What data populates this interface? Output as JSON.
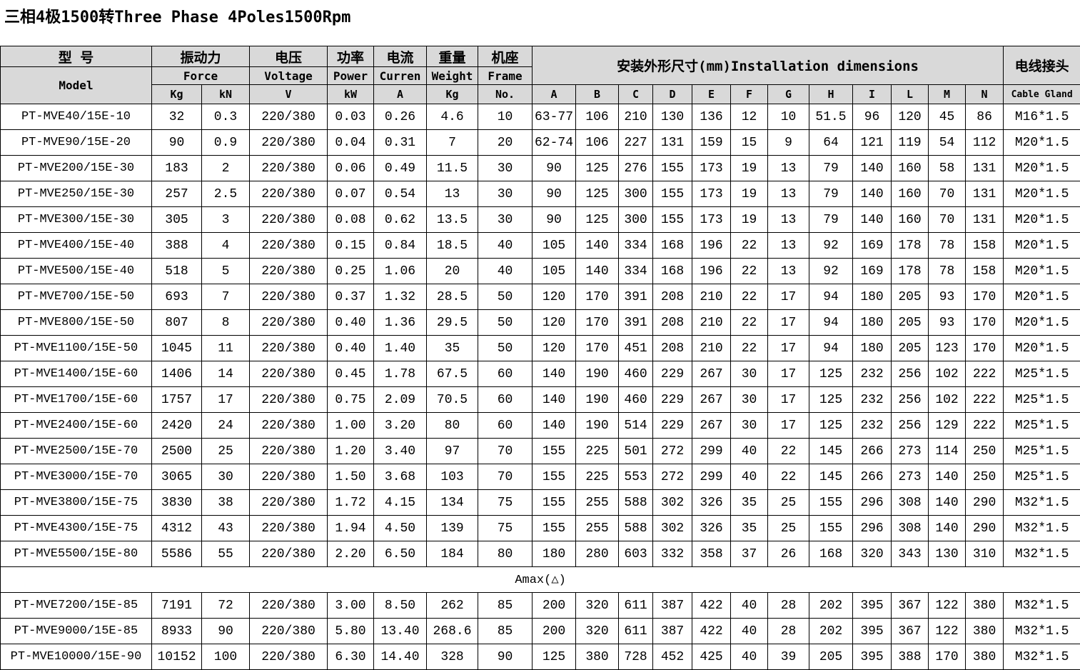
{
  "title": "三相4极1500转Three Phase 4Poles1500Rpm",
  "header": {
    "model_cn": "型 号",
    "model_en": "Model",
    "force_cn": "振动力",
    "force_en": "Force",
    "force_kg": "Kg",
    "force_kn": "kN",
    "voltage_cn": "电压",
    "voltage_en": "Voltage",
    "voltage_unit": "V",
    "power_cn": "功率",
    "power_en": "Power",
    "power_unit": "kW",
    "current_cn": "电流",
    "current_en": "Curren",
    "current_unit": "A",
    "weight_cn": "重量",
    "weight_en": "Weight",
    "weight_unit": "Kg",
    "frame_cn": "机座",
    "frame_en": "Frame",
    "frame_unit": "No.",
    "dims": "安装外形尺寸(mm)Installation dimensions",
    "dim_cols": [
      "A",
      "B",
      "C",
      "D",
      "E",
      "F",
      "G",
      "H",
      "I",
      "L",
      "M",
      "N"
    ],
    "gland_cn": "电线接头",
    "gland_en": "Cable Gland"
  },
  "rows": [
    [
      "PT-MVE40/15E-10",
      "32",
      "0.3",
      "220/380",
      "0.03",
      "0.26",
      "4.6",
      "10",
      "63-77",
      "106",
      "210",
      "130",
      "136",
      "12",
      "10",
      "51.5",
      "96",
      "120",
      "45",
      "86",
      "M16*1.5"
    ],
    [
      "PT-MVE90/15E-20",
      "90",
      "0.9",
      "220/380",
      "0.04",
      "0.31",
      "7",
      "20",
      "62-74",
      "106",
      "227",
      "131",
      "159",
      "15",
      "9",
      "64",
      "121",
      "119",
      "54",
      "112",
      "M20*1.5"
    ],
    [
      "PT-MVE200/15E-30",
      "183",
      "2",
      "220/380",
      "0.06",
      "0.49",
      "11.5",
      "30",
      "90",
      "125",
      "276",
      "155",
      "173",
      "19",
      "13",
      "79",
      "140",
      "160",
      "58",
      "131",
      "M20*1.5"
    ],
    [
      "PT-MVE250/15E-30",
      "257",
      "2.5",
      "220/380",
      "0.07",
      "0.54",
      "13",
      "30",
      "90",
      "125",
      "300",
      "155",
      "173",
      "19",
      "13",
      "79",
      "140",
      "160",
      "70",
      "131",
      "M20*1.5"
    ],
    [
      "PT-MVE300/15E-30",
      "305",
      "3",
      "220/380",
      "0.08",
      "0.62",
      "13.5",
      "30",
      "90",
      "125",
      "300",
      "155",
      "173",
      "19",
      "13",
      "79",
      "140",
      "160",
      "70",
      "131",
      "M20*1.5"
    ],
    [
      "PT-MVE400/15E-40",
      "388",
      "4",
      "220/380",
      "0.15",
      "0.84",
      "18.5",
      "40",
      "105",
      "140",
      "334",
      "168",
      "196",
      "22",
      "13",
      "92",
      "169",
      "178",
      "78",
      "158",
      "M20*1.5"
    ],
    [
      "PT-MVE500/15E-40",
      "518",
      "5",
      "220/380",
      "0.25",
      "1.06",
      "20",
      "40",
      "105",
      "140",
      "334",
      "168",
      "196",
      "22",
      "13",
      "92",
      "169",
      "178",
      "78",
      "158",
      "M20*1.5"
    ],
    [
      "PT-MVE700/15E-50",
      "693",
      "7",
      "220/380",
      "0.37",
      "1.32",
      "28.5",
      "50",
      "120",
      "170",
      "391",
      "208",
      "210",
      "22",
      "17",
      "94",
      "180",
      "205",
      "93",
      "170",
      "M20*1.5"
    ],
    [
      "PT-MVE800/15E-50",
      "807",
      "8",
      "220/380",
      "0.40",
      "1.36",
      "29.5",
      "50",
      "120",
      "170",
      "391",
      "208",
      "210",
      "22",
      "17",
      "94",
      "180",
      "205",
      "93",
      "170",
      "M20*1.5"
    ],
    [
      "PT-MVE1100/15E-50",
      "1045",
      "11",
      "220/380",
      "0.40",
      "1.40",
      "35",
      "50",
      "120",
      "170",
      "451",
      "208",
      "210",
      "22",
      "17",
      "94",
      "180",
      "205",
      "123",
      "170",
      "M20*1.5"
    ],
    [
      "PT-MVE1400/15E-60",
      "1406",
      "14",
      "220/380",
      "0.45",
      "1.78",
      "67.5",
      "60",
      "140",
      "190",
      "460",
      "229",
      "267",
      "30",
      "17",
      "125",
      "232",
      "256",
      "102",
      "222",
      "M25*1.5"
    ],
    [
      "PT-MVE1700/15E-60",
      "1757",
      "17",
      "220/380",
      "0.75",
      "2.09",
      "70.5",
      "60",
      "140",
      "190",
      "460",
      "229",
      "267",
      "30",
      "17",
      "125",
      "232",
      "256",
      "102",
      "222",
      "M25*1.5"
    ],
    [
      "PT-MVE2400/15E-60",
      "2420",
      "24",
      "220/380",
      "1.00",
      "3.20",
      "80",
      "60",
      "140",
      "190",
      "514",
      "229",
      "267",
      "30",
      "17",
      "125",
      "232",
      "256",
      "129",
      "222",
      "M25*1.5"
    ],
    [
      "PT-MVE2500/15E-70",
      "2500",
      "25",
      "220/380",
      "1.20",
      "3.40",
      "97",
      "70",
      "155",
      "225",
      "501",
      "272",
      "299",
      "40",
      "22",
      "145",
      "266",
      "273",
      "114",
      "250",
      "M25*1.5"
    ],
    [
      "PT-MVE3000/15E-70",
      "3065",
      "30",
      "220/380",
      "1.50",
      "3.68",
      "103",
      "70",
      "155",
      "225",
      "553",
      "272",
      "299",
      "40",
      "22",
      "145",
      "266",
      "273",
      "140",
      "250",
      "M25*1.5"
    ],
    [
      "PT-MVE3800/15E-75",
      "3830",
      "38",
      "220/380",
      "1.72",
      "4.15",
      "134",
      "75",
      "155",
      "255",
      "588",
      "302",
      "326",
      "35",
      "25",
      "155",
      "296",
      "308",
      "140",
      "290",
      "M32*1.5"
    ],
    [
      "PT-MVE4300/15E-75",
      "4312",
      "43",
      "220/380",
      "1.94",
      "4.50",
      "139",
      "75",
      "155",
      "255",
      "588",
      "302",
      "326",
      "35",
      "25",
      "155",
      "296",
      "308",
      "140",
      "290",
      "M32*1.5"
    ],
    [
      "PT-MVE5500/15E-80",
      "5586",
      "55",
      "220/380",
      "2.20",
      "6.50",
      "184",
      "80",
      "180",
      "280",
      "603",
      "332",
      "358",
      "37",
      "26",
      "168",
      "320",
      "343",
      "130",
      "310",
      "M32*1.5"
    ]
  ],
  "amax_label": "Amax(△)",
  "rows2": [
    [
      "PT-MVE7200/15E-85",
      "7191",
      "72",
      "220/380",
      "3.00",
      "8.50",
      "262",
      "85",
      "200",
      "320",
      "611",
      "387",
      "422",
      "40",
      "28",
      "202",
      "395",
      "367",
      "122",
      "380",
      "M32*1.5"
    ],
    [
      "PT-MVE9000/15E-85",
      "8933",
      "90",
      "220/380",
      "5.80",
      "13.40",
      "268.6",
      "85",
      "200",
      "320",
      "611",
      "387",
      "422",
      "40",
      "28",
      "202",
      "395",
      "367",
      "122",
      "380",
      "M32*1.5"
    ],
    [
      "PT-MVE10000/15E-90",
      "10152",
      "100",
      "220/380",
      "6.30",
      "14.40",
      "328",
      "90",
      "125",
      "380",
      "728",
      "452",
      "425",
      "40",
      "39",
      "205",
      "395",
      "388",
      "170",
      "380",
      "M32*1.5"
    ]
  ]
}
